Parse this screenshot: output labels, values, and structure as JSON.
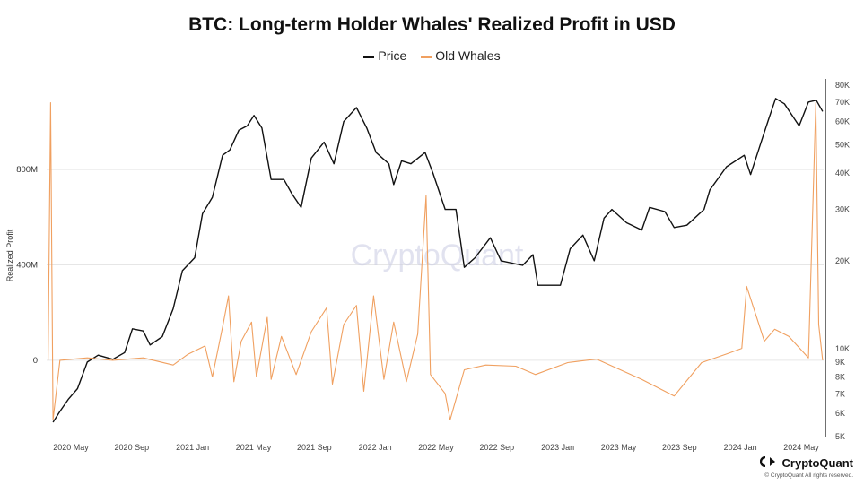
{
  "chart_data": {
    "type": "line",
    "title": "BTC: Long-term Holder Whales' Realized Profit in USD",
    "ylabel": "Realized Profit",
    "watermark": "CryptoQuant",
    "left_axis": {
      "ticks": [
        {
          "v": 0,
          "label": "0"
        },
        {
          "v": 400000000,
          "label": "400M"
        },
        {
          "v": 800000000,
          "label": "800M"
        }
      ],
      "ylim": [
        -320000000,
        1180000000
      ]
    },
    "right_axis": {
      "scale": "log",
      "ylim": [
        5000,
        84000
      ],
      "ticks": [
        {
          "v": 5000,
          "label": "5K"
        },
        {
          "v": 6000,
          "label": "6K"
        },
        {
          "v": 7000,
          "label": "7K"
        },
        {
          "v": 8000,
          "label": "8K"
        },
        {
          "v": 9000,
          "label": "9K"
        },
        {
          "v": 10000,
          "label": "10K"
        },
        {
          "v": 20000,
          "label": "20K"
        },
        {
          "v": 30000,
          "label": "30K"
        },
        {
          "v": 40000,
          "label": "40K"
        },
        {
          "v": 50000,
          "label": "50K"
        },
        {
          "v": 60000,
          "label": "60K"
        },
        {
          "v": 70000,
          "label": "70K"
        },
        {
          "v": 80000,
          "label": "80K"
        }
      ]
    },
    "x_ticks": [
      "2020 May",
      "2020 Sep",
      "2021 Jan",
      "2021 May",
      "2021 Sep",
      "2022 Jan",
      "2022 May",
      "2022 Sep",
      "2023 Jan",
      "2023 May",
      "2023 Sep",
      "2024 Jan",
      "2024 May"
    ],
    "x_range": [
      "2020-02-17",
      "2024-06-20"
    ],
    "series": [
      {
        "name": "Price",
        "color": "#111111",
        "axis": "right",
        "points": [
          [
            "2020-03-01",
            5600
          ],
          [
            "2020-03-15",
            6100
          ],
          [
            "2020-04-01",
            6700
          ],
          [
            "2020-04-20",
            7300
          ],
          [
            "2020-05-10",
            9000
          ],
          [
            "2020-06-01",
            9500
          ],
          [
            "2020-07-01",
            9200
          ],
          [
            "2020-07-25",
            9700
          ],
          [
            "2020-08-10",
            11700
          ],
          [
            "2020-09-01",
            11500
          ],
          [
            "2020-09-15",
            10300
          ],
          [
            "2020-10-10",
            11000
          ],
          [
            "2020-11-01",
            13700
          ],
          [
            "2020-11-20",
            18500
          ],
          [
            "2020-12-15",
            20500
          ],
          [
            "2020-12-31",
            29000
          ],
          [
            "2021-01-20",
            33000
          ],
          [
            "2021-02-10",
            46000
          ],
          [
            "2021-02-25",
            48000
          ],
          [
            "2021-03-15",
            56000
          ],
          [
            "2021-04-01",
            58000
          ],
          [
            "2021-04-15",
            63000
          ],
          [
            "2021-05-01",
            57000
          ],
          [
            "2021-05-20",
            38000
          ],
          [
            "2021-06-15",
            38000
          ],
          [
            "2021-07-01",
            34000
          ],
          [
            "2021-07-20",
            30500
          ],
          [
            "2021-08-10",
            45000
          ],
          [
            "2021-09-05",
            51000
          ],
          [
            "2021-09-25",
            43000
          ],
          [
            "2021-10-15",
            60000
          ],
          [
            "2021-11-10",
            67000
          ],
          [
            "2021-12-01",
            57000
          ],
          [
            "2021-12-20",
            47000
          ],
          [
            "2022-01-15",
            43000
          ],
          [
            "2022-01-25",
            36500
          ],
          [
            "2022-02-10",
            44000
          ],
          [
            "2022-03-01",
            43000
          ],
          [
            "2022-03-30",
            47000
          ],
          [
            "2022-04-15",
            40000
          ],
          [
            "2022-05-10",
            30000
          ],
          [
            "2022-06-01",
            30000
          ],
          [
            "2022-06-18",
            19000
          ],
          [
            "2022-07-10",
            20500
          ],
          [
            "2022-08-10",
            24000
          ],
          [
            "2022-09-01",
            20000
          ],
          [
            "2022-10-15",
            19300
          ],
          [
            "2022-11-05",
            21000
          ],
          [
            "2022-11-15",
            16500
          ],
          [
            "2022-12-31",
            16500
          ],
          [
            "2023-01-20",
            22000
          ],
          [
            "2023-02-15",
            24500
          ],
          [
            "2023-03-10",
            20000
          ],
          [
            "2023-03-30",
            28000
          ],
          [
            "2023-04-15",
            30000
          ],
          [
            "2023-05-15",
            27000
          ],
          [
            "2023-06-15",
            25500
          ],
          [
            "2023-07-01",
            30500
          ],
          [
            "2023-08-01",
            29500
          ],
          [
            "2023-08-20",
            26000
          ],
          [
            "2023-09-15",
            26500
          ],
          [
            "2023-10-20",
            30000
          ],
          [
            "2023-11-01",
            35000
          ],
          [
            "2023-12-05",
            42000
          ],
          [
            "2024-01-10",
            46000
          ],
          [
            "2024-01-23",
            39500
          ],
          [
            "2024-02-15",
            52000
          ],
          [
            "2024-03-01",
            62000
          ],
          [
            "2024-03-14",
            72000
          ],
          [
            "2024-04-01",
            69000
          ],
          [
            "2024-05-01",
            58000
          ],
          [
            "2024-05-20",
            70000
          ],
          [
            "2024-06-05",
            71000
          ],
          [
            "2024-06-18",
            65000
          ]
        ]
      },
      {
        "name": "Old Whales",
        "color": "#f0a060",
        "axis": "left",
        "points": [
          [
            "2020-02-20",
            0
          ],
          [
            "2020-02-25",
            1080000000
          ],
          [
            "2020-03-01",
            -250000000
          ],
          [
            "2020-03-15",
            0
          ],
          [
            "2020-05-10",
            10000000
          ],
          [
            "2020-07-01",
            0
          ],
          [
            "2020-09-01",
            10000000
          ],
          [
            "2020-11-01",
            -20000000
          ],
          [
            "2020-12-01",
            25000000
          ],
          [
            "2021-01-05",
            60000000
          ],
          [
            "2021-01-20",
            -70000000
          ],
          [
            "2021-02-10",
            140000000
          ],
          [
            "2021-02-22",
            270000000
          ],
          [
            "2021-03-05",
            -90000000
          ],
          [
            "2021-03-20",
            80000000
          ],
          [
            "2021-04-10",
            160000000
          ],
          [
            "2021-04-20",
            -70000000
          ],
          [
            "2021-05-12",
            180000000
          ],
          [
            "2021-05-20",
            -80000000
          ],
          [
            "2021-06-10",
            100000000
          ],
          [
            "2021-07-10",
            -60000000
          ],
          [
            "2021-08-10",
            120000000
          ],
          [
            "2021-09-10",
            220000000
          ],
          [
            "2021-09-22",
            -100000000
          ],
          [
            "2021-10-15",
            150000000
          ],
          [
            "2021-11-10",
            230000000
          ],
          [
            "2021-11-25",
            -130000000
          ],
          [
            "2021-12-15",
            270000000
          ],
          [
            "2022-01-05",
            -80000000
          ],
          [
            "2022-01-25",
            160000000
          ],
          [
            "2022-02-20",
            -90000000
          ],
          [
            "2022-03-15",
            110000000
          ],
          [
            "2022-04-01",
            690000000
          ],
          [
            "2022-04-10",
            -60000000
          ],
          [
            "2022-05-10",
            -140000000
          ],
          [
            "2022-05-20",
            -250000000
          ],
          [
            "2022-06-18",
            -40000000
          ],
          [
            "2022-08-01",
            -20000000
          ],
          [
            "2022-10-01",
            -25000000
          ],
          [
            "2022-11-10",
            -60000000
          ],
          [
            "2023-01-15",
            -10000000
          ],
          [
            "2023-03-15",
            5000000
          ],
          [
            "2023-06-15",
            -80000000
          ],
          [
            "2023-08-20",
            -150000000
          ],
          [
            "2023-10-15",
            -10000000
          ],
          [
            "2023-12-10",
            30000000
          ],
          [
            "2024-01-05",
            50000000
          ],
          [
            "2024-01-15",
            310000000
          ],
          [
            "2024-02-20",
            80000000
          ],
          [
            "2024-03-12",
            130000000
          ],
          [
            "2024-04-10",
            100000000
          ],
          [
            "2024-05-20",
            10000000
          ],
          [
            "2024-06-04",
            1080000000
          ],
          [
            "2024-06-10",
            150000000
          ],
          [
            "2024-06-18",
            0
          ]
        ]
      }
    ],
    "grid": "horizontal",
    "legend": "top-center"
  },
  "branding": {
    "name": "CryptoQuant",
    "copyright": "© CryptoQuant All rights reserved."
  }
}
